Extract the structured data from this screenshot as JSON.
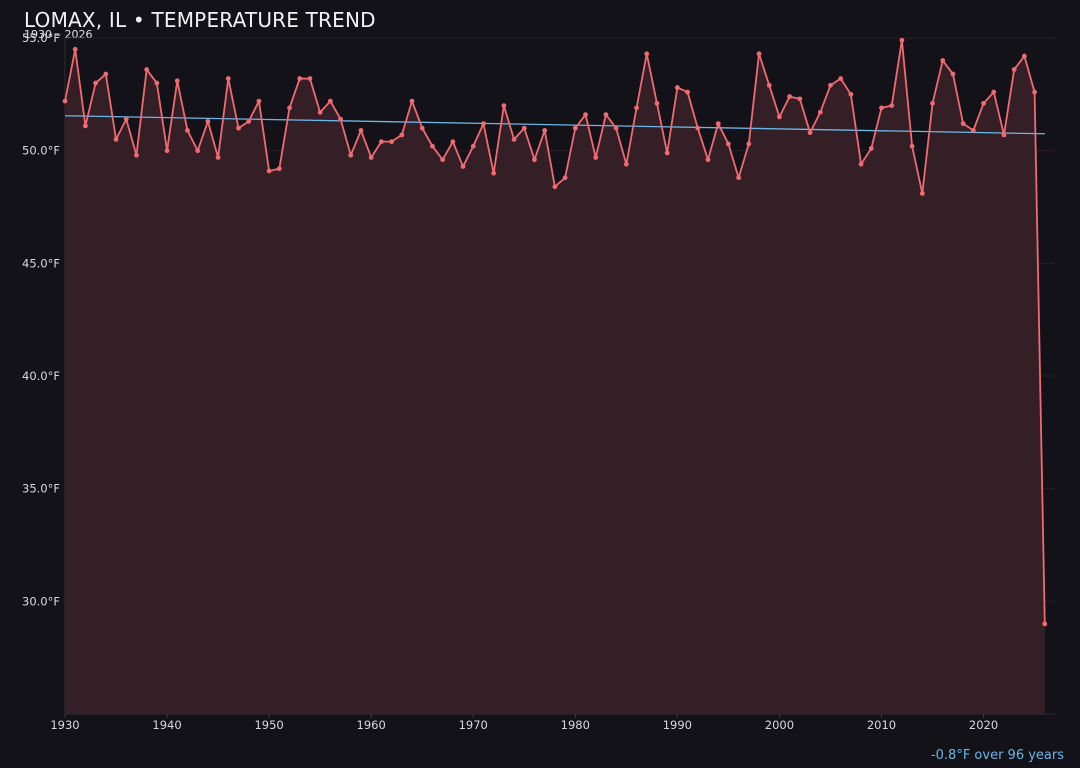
{
  "title": "LOMAX, IL • TEMPERATURE TREND",
  "subtitle": "1930 – 2026",
  "footer_note": "-0.8°F over 96 years",
  "colors": {
    "background": "#131218",
    "series": "#f06a72",
    "fill": "#351f26",
    "trend": "#6cb6e8",
    "grid": "#2a1f26"
  },
  "chart_data": {
    "type": "line",
    "title": "LOMAX, IL • TEMPERATURE TREND",
    "subtitle": "1930 – 2026",
    "xlabel": "",
    "ylabel": "",
    "xlim": [
      1930,
      2027
    ],
    "ylim": [
      25,
      55
    ],
    "x_ticks": [
      1930,
      1940,
      1950,
      1960,
      1970,
      1980,
      1990,
      2000,
      2010,
      2020
    ],
    "x_tick_labels": [
      "1930",
      "1940",
      "1950",
      "1960",
      "1970",
      "1980",
      "1990",
      "2000",
      "2010",
      "2020"
    ],
    "y_ticks": [
      30,
      35,
      40,
      45,
      50,
      55
    ],
    "y_tick_labels": [
      "30.0°F",
      "35.0°F",
      "40.0°F",
      "45.0°F",
      "50.0°F",
      "55.0°F"
    ],
    "grid": true,
    "area_fill": true,
    "x": [
      1930,
      1931,
      1932,
      1933,
      1934,
      1935,
      1936,
      1937,
      1938,
      1939,
      1940,
      1941,
      1942,
      1943,
      1944,
      1945,
      1946,
      1947,
      1948,
      1949,
      1950,
      1951,
      1952,
      1953,
      1954,
      1955,
      1956,
      1957,
      1958,
      1959,
      1960,
      1961,
      1962,
      1963,
      1964,
      1965,
      1966,
      1967,
      1968,
      1969,
      1970,
      1971,
      1972,
      1973,
      1974,
      1975,
      1976,
      1977,
      1978,
      1979,
      1980,
      1981,
      1982,
      1983,
      1984,
      1985,
      1986,
      1987,
      1988,
      1989,
      1990,
      1991,
      1992,
      1993,
      1994,
      1995,
      1996,
      1997,
      1998,
      1999,
      2000,
      2001,
      2002,
      2003,
      2004,
      2005,
      2006,
      2007,
      2008,
      2009,
      2010,
      2011,
      2012,
      2013,
      2014,
      2015,
      2016,
      2017,
      2018,
      2019,
      2020,
      2021,
      2022,
      2023,
      2024,
      2025,
      2026
    ],
    "series": [
      {
        "values": [
          52.2,
          54.5,
          51.1,
          53.0,
          53.4,
          50.5,
          51.4,
          49.8,
          53.6,
          53.0,
          50.0,
          53.1,
          50.9,
          50.0,
          51.3,
          49.7,
          53.2,
          51.0,
          51.3,
          52.2,
          49.1,
          49.2,
          51.9,
          53.2,
          53.2,
          51.7,
          52.2,
          51.4,
          49.8,
          50.9,
          49.7,
          50.4,
          50.4,
          50.7,
          52.2,
          51.0,
          50.2,
          49.6,
          50.4,
          49.3,
          50.2,
          51.2,
          49.0,
          52.0,
          50.5,
          51.0,
          49.6,
          50.9,
          48.4,
          48.8,
          51.0,
          51.6,
          49.7,
          51.6,
          51.0,
          49.4,
          51.9,
          54.3,
          52.1,
          49.9,
          52.8,
          52.6,
          51.0,
          49.6,
          51.2,
          50.3,
          48.8,
          50.3,
          54.3,
          52.9,
          51.5,
          52.4,
          52.3,
          50.8,
          51.7,
          52.9,
          53.2,
          52.5,
          49.4,
          50.1,
          51.9,
          52.0,
          54.9,
          50.2,
          48.1,
          52.1,
          54.0,
          53.4,
          51.2,
          50.9,
          52.1,
          52.6,
          50.7,
          53.6,
          54.2,
          52.6,
          29.0
        ]
      }
    ],
    "trend": {
      "x": [
        1930,
        2026
      ],
      "y": [
        51.55,
        50.75
      ]
    }
  }
}
